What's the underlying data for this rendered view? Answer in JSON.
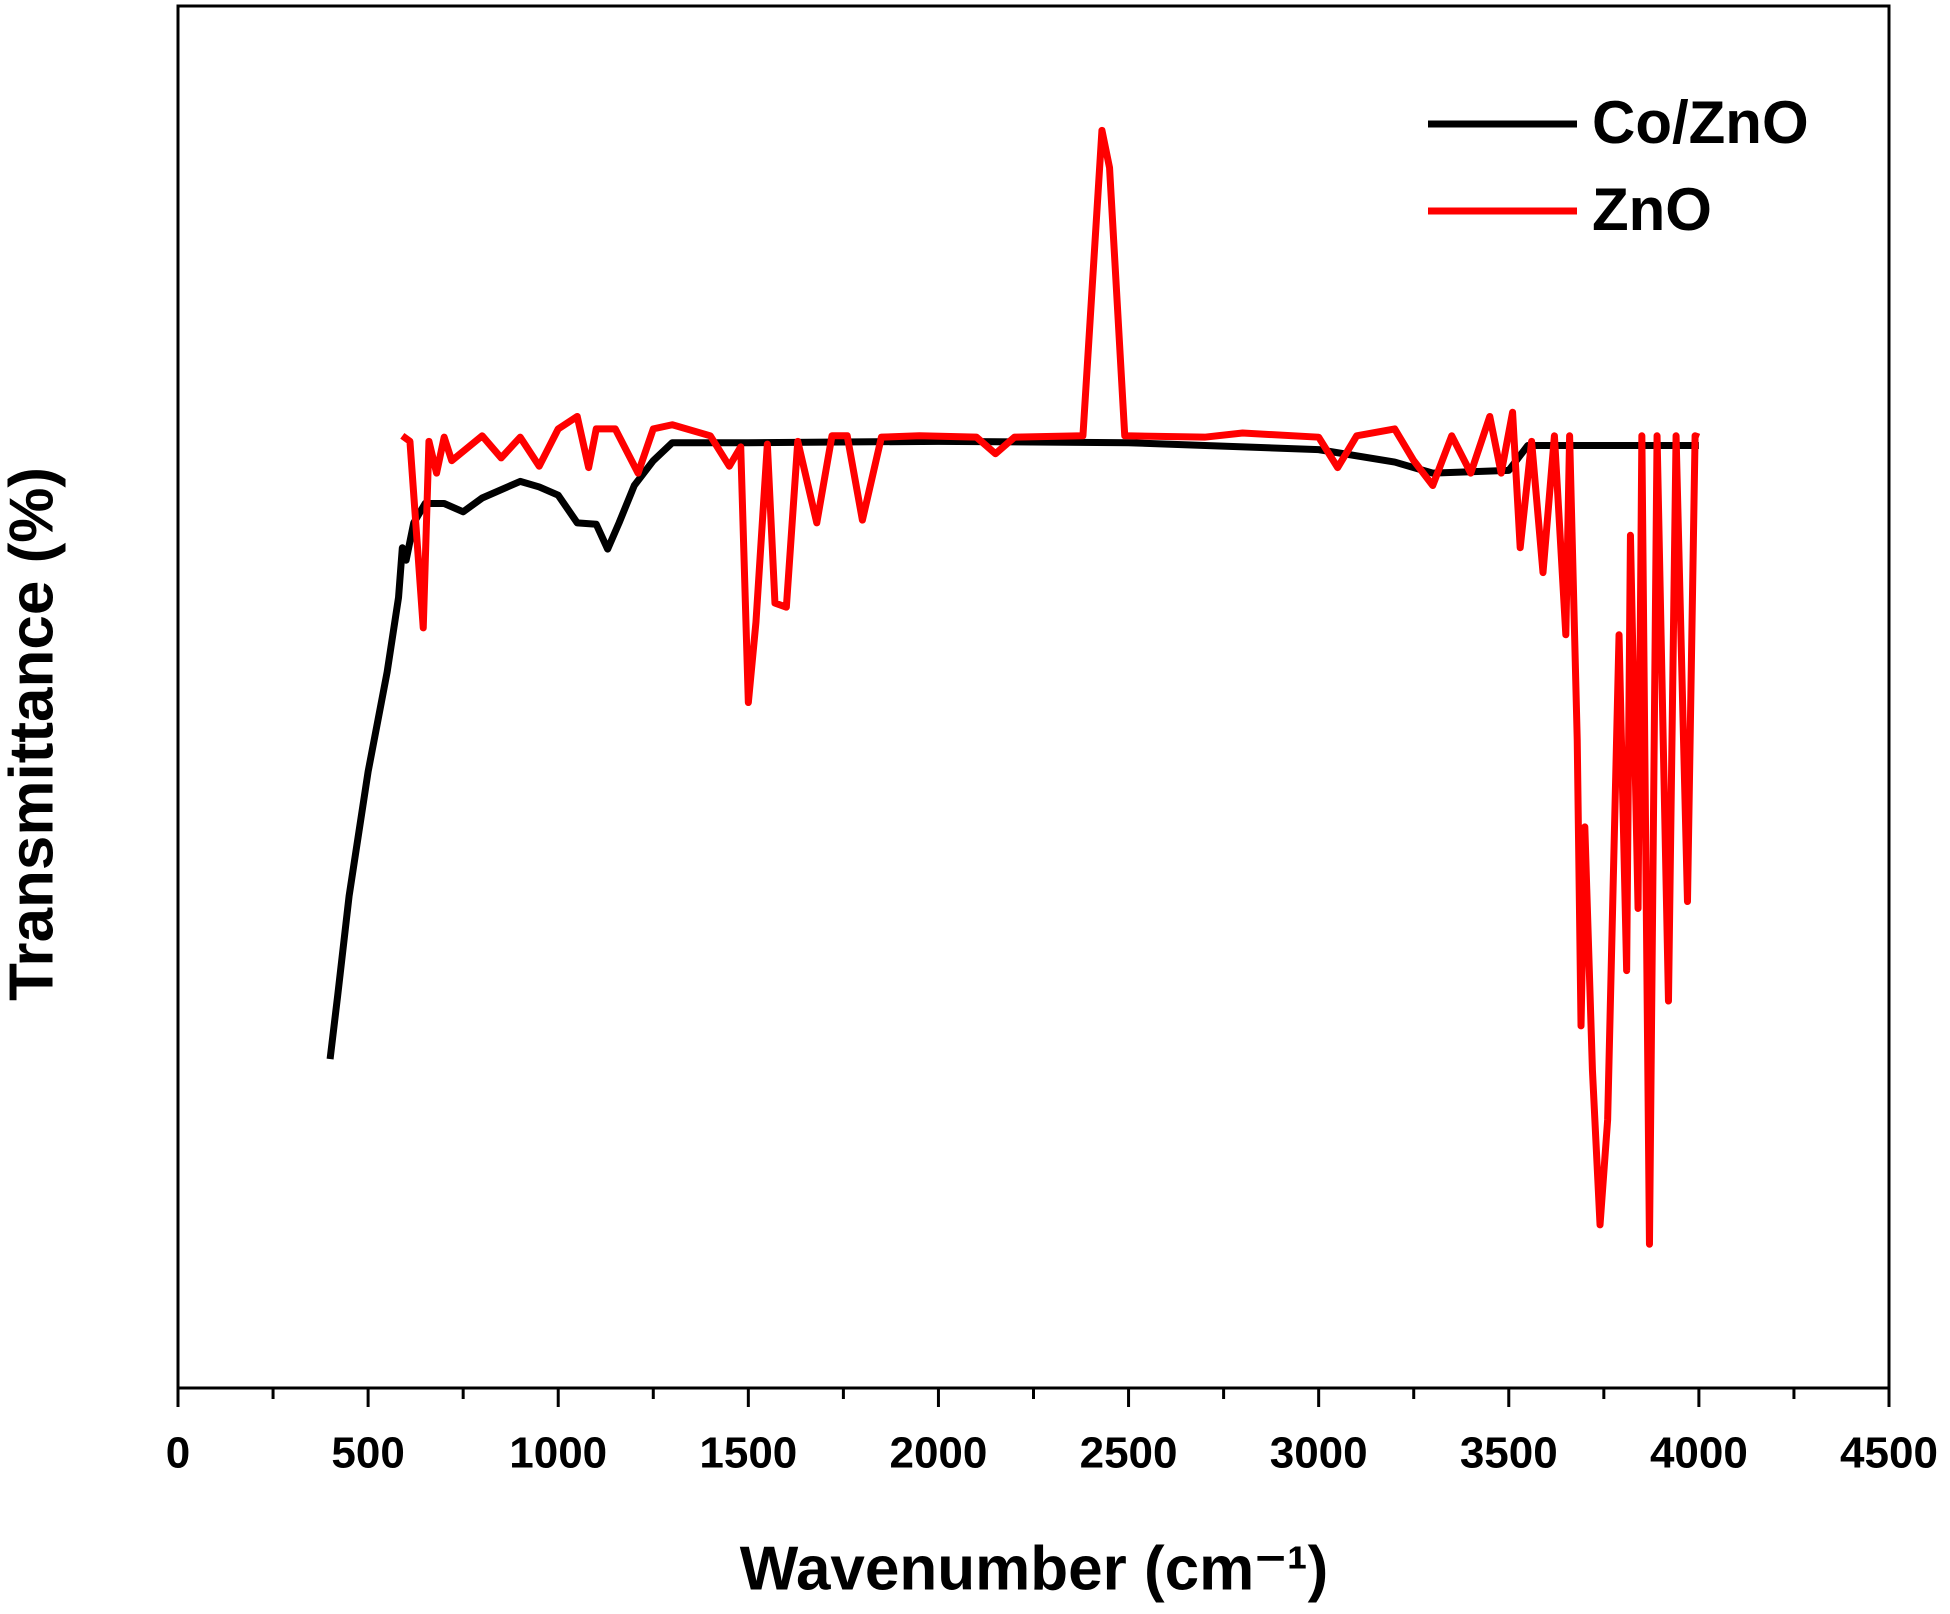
{
  "chart_data": {
    "type": "line",
    "x_label": "Wavenumber (cm⁻¹)",
    "y_label": "Transmittance (%)",
    "xlim": [
      0,
      4500
    ],
    "xticks": [
      0,
      500,
      1000,
      1500,
      2000,
      2500,
      3000,
      3500,
      4000,
      4500
    ],
    "ylim": [
      0,
      100
    ],
    "legend": "upper right",
    "series": [
      {
        "name": "Co/ZnO",
        "color": "#000000",
        "x": [
          400,
          420,
          450,
          500,
          550,
          580,
          590,
          600,
          620,
          650,
          700,
          750,
          800,
          900,
          950,
          1000,
          1050,
          1100,
          1130,
          1160,
          1200,
          1250,
          1300,
          1500,
          2000,
          2500,
          3000,
          3200,
          3300,
          3500,
          3550,
          4000
        ],
        "values": [
          23.8,
          28.4,
          35.6,
          44.6,
          51.8,
          57.2,
          60.8,
          59.9,
          62.6,
          64.0,
          64.0,
          63.4,
          64.4,
          65.6,
          65.2,
          64.6,
          62.6,
          62.5,
          60.7,
          62.6,
          65.3,
          67.1,
          68.4,
          68.4,
          68.5,
          68.4,
          67.9,
          67.0,
          66.2,
          66.4,
          68.2,
          68.2
        ]
      },
      {
        "name": "ZnO",
        "color": "#ff0000",
        "x": [
          590,
          610,
          630,
          645,
          660,
          680,
          700,
          720,
          800,
          850,
          900,
          950,
          1000,
          1050,
          1080,
          1100,
          1150,
          1210,
          1250,
          1300,
          1400,
          1450,
          1480,
          1500,
          1520,
          1550,
          1570,
          1600,
          1630,
          1680,
          1720,
          1760,
          1800,
          1850,
          1950,
          2100,
          2150,
          2200,
          2380,
          2430,
          2450,
          2490,
          2700,
          2800,
          3000,
          3050,
          3100,
          3200,
          3250,
          3300,
          3350,
          3400,
          3450,
          3480,
          3510,
          3530,
          3560,
          3590,
          3620,
          3650,
          3660,
          3680,
          3690,
          3700,
          3720,
          3740,
          3760,
          3790,
          3810,
          3820,
          3840,
          3850,
          3870,
          3890,
          3920,
          3940,
          3970,
          3990,
          4000
        ],
        "values": [
          68.9,
          68.5,
          60.8,
          55.0,
          68.5,
          66.2,
          68.8,
          67.1,
          68.9,
          67.3,
          68.8,
          66.7,
          69.4,
          70.3,
          66.6,
          69.4,
          69.4,
          66.2,
          69.4,
          69.7,
          68.9,
          66.7,
          68.1,
          49.6,
          55.4,
          68.3,
          56.8,
          56.5,
          68.5,
          62.6,
          68.9,
          68.9,
          62.8,
          68.8,
          68.9,
          68.8,
          67.6,
          68.8,
          68.9,
          91.0,
          88.3,
          68.9,
          68.8,
          69.1,
          68.8,
          66.6,
          68.9,
          69.4,
          67.1,
          65.3,
          68.9,
          66.2,
          70.3,
          66.2,
          70.6,
          60.8,
          68.5,
          59.0,
          68.9,
          54.5,
          68.9,
          46.9,
          26.2,
          40.6,
          23.0,
          11.8,
          19.4,
          54.5,
          30.2,
          61.7,
          34.7,
          68.9,
          10.4,
          68.9,
          28.0,
          68.9,
          35.2,
          68.9,
          68.8
        ]
      }
    ]
  }
}
